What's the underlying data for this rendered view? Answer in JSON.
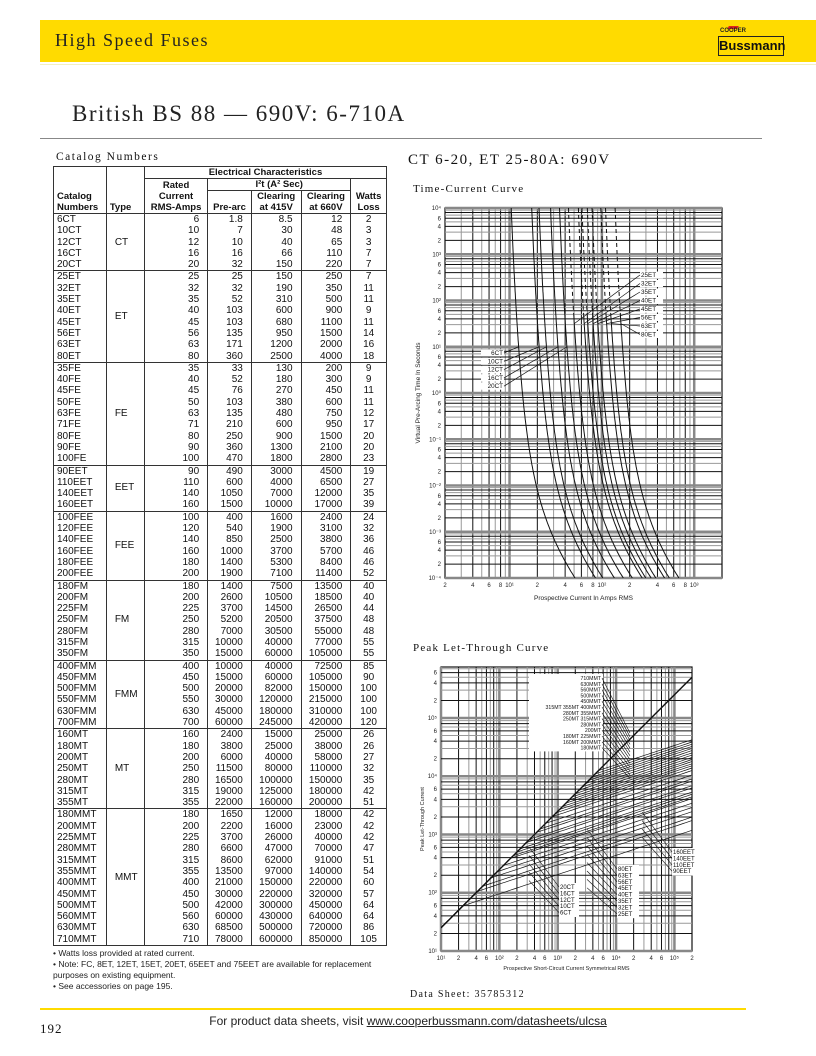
{
  "header": {
    "section": "High Speed Fuses",
    "brand_small": "COOPER",
    "brand": "Bussmann",
    "brand_color": "#ffdb00"
  },
  "title": "British BS 88 — 690V: 6-710A",
  "catalog": {
    "title": "Catalog Numbers",
    "headers": {
      "catalog": "Catalog",
      "numbers": "Numbers",
      "type": "Type",
      "electrical": "Electrical Characteristics",
      "rated1": "Rated",
      "rated2": "Current",
      "rated3": "RMS-Amps",
      "i2t": "I²t (A² Sec)",
      "prearc": "Pre-arc",
      "clear1": "Clearing",
      "at415": "at 415V",
      "at660": "at 660V",
      "watts": "Watts",
      "loss": "Loss"
    },
    "groups": [
      {
        "type": "CT",
        "rows": [
          [
            "6CT",
            "6",
            "1.8",
            "8.5",
            "12",
            "2"
          ],
          [
            "10CT",
            "10",
            "7",
            "30",
            "48",
            "3"
          ],
          [
            "12CT",
            "12",
            "10",
            "40",
            "65",
            "3"
          ],
          [
            "16CT",
            "16",
            "16",
            "66",
            "110",
            "7"
          ],
          [
            "20CT",
            "20",
            "32",
            "150",
            "220",
            "7"
          ]
        ]
      },
      {
        "type": "ET",
        "rows": [
          [
            "25ET",
            "25",
            "25",
            "150",
            "250",
            "7"
          ],
          [
            "32ET",
            "32",
            "32",
            "190",
            "350",
            "11"
          ],
          [
            "35ET",
            "35",
            "52",
            "310",
            "500",
            "11"
          ],
          [
            "40ET",
            "40",
            "103",
            "600",
            "900",
            "9"
          ],
          [
            "45ET",
            "45",
            "103",
            "680",
            "1100",
            "11"
          ],
          [
            "56ET",
            "56",
            "135",
            "950",
            "1500",
            "14"
          ],
          [
            "63ET",
            "63",
            "171",
            "1200",
            "2000",
            "16"
          ],
          [
            "80ET",
            "80",
            "360",
            "2500",
            "4000",
            "18"
          ]
        ]
      },
      {
        "type": "FE",
        "rows": [
          [
            "35FE",
            "35",
            "33",
            "130",
            "200",
            "9"
          ],
          [
            "40FE",
            "40",
            "52",
            "180",
            "300",
            "9"
          ],
          [
            "45FE",
            "45",
            "76",
            "270",
            "450",
            "11"
          ],
          [
            "50FE",
            "50",
            "103",
            "380",
            "600",
            "11"
          ],
          [
            "63FE",
            "63",
            "135",
            "480",
            "750",
            "12"
          ],
          [
            "71FE",
            "71",
            "210",
            "600",
            "950",
            "17"
          ],
          [
            "80FE",
            "80",
            "250",
            "900",
            "1500",
            "20"
          ],
          [
            "90FE",
            "90",
            "360",
            "1300",
            "2100",
            "20"
          ],
          [
            "100FE",
            "100",
            "470",
            "1800",
            "2800",
            "23"
          ]
        ]
      },
      {
        "type": "EET",
        "rows": [
          [
            "90EET",
            "90",
            "490",
            "3000",
            "4500",
            "19"
          ],
          [
            "110EET",
            "110",
            "600",
            "4000",
            "6500",
            "27"
          ],
          [
            "140EET",
            "140",
            "1050",
            "7000",
            "12000",
            "35"
          ],
          [
            "160EET",
            "160",
            "1500",
            "10000",
            "17000",
            "39"
          ]
        ]
      },
      {
        "type": "FEE",
        "rows": [
          [
            "100FEE",
            "100",
            "400",
            "1600",
            "2400",
            "24"
          ],
          [
            "120FEE",
            "120",
            "540",
            "1900",
            "3100",
            "32"
          ],
          [
            "140FEE",
            "140",
            "850",
            "2500",
            "3800",
            "36"
          ],
          [
            "160FEE",
            "160",
            "1000",
            "3700",
            "5700",
            "46"
          ],
          [
            "180FEE",
            "180",
            "1400",
            "5300",
            "8400",
            "46"
          ],
          [
            "200FEE",
            "200",
            "1900",
            "7100",
            "11400",
            "52"
          ]
        ]
      },
      {
        "type": "FM",
        "rows": [
          [
            "180FM",
            "180",
            "1400",
            "7500",
            "13500",
            "40"
          ],
          [
            "200FM",
            "200",
            "2600",
            "10500",
            "18500",
            "40"
          ],
          [
            "225FM",
            "225",
            "3700",
            "14500",
            "26500",
            "44"
          ],
          [
            "250FM",
            "250",
            "5200",
            "20500",
            "37500",
            "48"
          ],
          [
            "280FM",
            "280",
            "7000",
            "30500",
            "55000",
            "48"
          ],
          [
            "315FM",
            "315",
            "10000",
            "40000",
            "77000",
            "55"
          ],
          [
            "350FM",
            "350",
            "15000",
            "60000",
            "105000",
            "55"
          ]
        ]
      },
      {
        "type": "FMM",
        "rows": [
          [
            "400FMM",
            "400",
            "10000",
            "40000",
            "72500",
            "85"
          ],
          [
            "450FMM",
            "450",
            "15000",
            "60000",
            "105000",
            "90"
          ],
          [
            "500FMM",
            "500",
            "20000",
            "82000",
            "150000",
            "100"
          ],
          [
            "550FMM",
            "550",
            "30000",
            "120000",
            "215000",
            "100"
          ],
          [
            "630FMM",
            "630",
            "45000",
            "180000",
            "310000",
            "100"
          ],
          [
            "700FMM",
            "700",
            "60000",
            "245000",
            "420000",
            "120"
          ]
        ]
      },
      {
        "type": "MT",
        "rows": [
          [
            "160MT",
            "160",
            "2400",
            "15000",
            "25000",
            "26"
          ],
          [
            "180MT",
            "180",
            "3800",
            "25000",
            "38000",
            "26"
          ],
          [
            "200MT",
            "200",
            "6000",
            "40000",
            "58000",
            "27"
          ],
          [
            "250MT",
            "250",
            "11500",
            "80000",
            "110000",
            "32"
          ],
          [
            "280MT",
            "280",
            "16500",
            "100000",
            "150000",
            "35"
          ],
          [
            "315MT",
            "315",
            "19000",
            "125000",
            "180000",
            "42"
          ],
          [
            "355MT",
            "355",
            "22000",
            "160000",
            "200000",
            "51"
          ]
        ]
      },
      {
        "type": "MMT",
        "rows": [
          [
            "180MMT",
            "180",
            "1650",
            "12000",
            "18000",
            "42"
          ],
          [
            "200MMT",
            "200",
            "2200",
            "16000",
            "23000",
            "42"
          ],
          [
            "225MMT",
            "225",
            "3700",
            "26000",
            "40000",
            "42"
          ],
          [
            "280MMT",
            "280",
            "6600",
            "47000",
            "70000",
            "47"
          ],
          [
            "315MMT",
            "315",
            "8600",
            "62000",
            "91000",
            "51"
          ],
          [
            "355MMT",
            "355",
            "13500",
            "97000",
            "140000",
            "54"
          ],
          [
            "400MMT",
            "400",
            "21000",
            "150000",
            "220000",
            "60"
          ],
          [
            "450MMT",
            "450",
            "30000",
            "220000",
            "320000",
            "57"
          ],
          [
            "500MMT",
            "500",
            "42000",
            "300000",
            "450000",
            "64"
          ],
          [
            "560MMT",
            "560",
            "60000",
            "430000",
            "640000",
            "64"
          ],
          [
            "630MMT",
            "630",
            "68500",
            "500000",
            "720000",
            "86"
          ],
          [
            "710MMT",
            "710",
            "78000",
            "600000",
            "850000",
            "105"
          ]
        ]
      }
    ],
    "notes": [
      "• Watts loss provided at rated current.",
      "• Note: FC, 8ET, 12ET, 15ET, 20ET, 65EET and 75EET are available for replacement purposes on existing equipment.",
      "• See accessories on page 195."
    ]
  },
  "charts_heading": "CT 6-20, ET 25-80A: 690V",
  "chart_data": [
    {
      "type": "line",
      "title": "Time-Current Curve",
      "xlabel": "Prospective Current In Amps RMS",
      "ylabel": "Virtual Pre-Arcing Time In Seconds",
      "xscale": "log",
      "yscale": "log",
      "xlim": [
        2,
        2000
      ],
      "ylim": [
        0.0001,
        10000
      ],
      "grid": true,
      "x_ticks": [
        {
          "v": 2,
          "t": "2"
        },
        {
          "v": 4,
          "t": "4"
        },
        {
          "v": 6,
          "t": "6"
        },
        {
          "v": 8,
          "t": "8"
        },
        {
          "v": 10,
          "t": "10¹"
        },
        {
          "v": 20,
          "t": "2"
        },
        {
          "v": 40,
          "t": "4"
        },
        {
          "v": 60,
          "t": "6"
        },
        {
          "v": 80,
          "t": "8"
        },
        {
          "v": 100,
          "t": "10²"
        },
        {
          "v": 200,
          "t": "2"
        },
        {
          "v": 400,
          "t": "4"
        },
        {
          "v": 600,
          "t": "6"
        },
        {
          "v": 800,
          "t": "8"
        },
        {
          "v": 1000,
          "t": "10³"
        }
      ],
      "y_ticks": [
        {
          "v": 10000,
          "t": "10⁴"
        },
        {
          "v": 6000,
          "t": "6"
        },
        {
          "v": 4000,
          "t": "4"
        },
        {
          "v": 2000,
          "t": "2"
        },
        {
          "v": 1000,
          "t": "10³"
        },
        {
          "v": 600,
          "t": "6"
        },
        {
          "v": 400,
          "t": "4"
        },
        {
          "v": 200,
          "t": "2"
        },
        {
          "v": 100,
          "t": "10²"
        },
        {
          "v": 60,
          "t": "6"
        },
        {
          "v": 40,
          "t": "4"
        },
        {
          "v": 20,
          "t": "2"
        },
        {
          "v": 10,
          "t": "10¹"
        },
        {
          "v": 6,
          "t": "6"
        },
        {
          "v": 4,
          "t": "4"
        },
        {
          "v": 2,
          "t": "2"
        },
        {
          "v": 1,
          "t": "10⁰"
        },
        {
          "v": 0.6,
          "t": "6"
        },
        {
          "v": 0.4,
          "t": "4"
        },
        {
          "v": 0.2,
          "t": "2"
        },
        {
          "v": 0.1,
          "t": "10⁻¹"
        },
        {
          "v": 0.06,
          "t": "6"
        },
        {
          "v": 0.04,
          "t": "4"
        },
        {
          "v": 0.02,
          "t": "2"
        },
        {
          "v": 0.01,
          "t": "10⁻²"
        },
        {
          "v": 0.006,
          "t": "6"
        },
        {
          "v": 0.004,
          "t": "4"
        },
        {
          "v": 0.002,
          "t": "2"
        },
        {
          "v": 0.001,
          "t": "10⁻³"
        },
        {
          "v": 0.0006,
          "t": "6"
        },
        {
          "v": 0.0004,
          "t": "4"
        },
        {
          "v": 0.0002,
          "t": "2"
        },
        {
          "v": 0.0001,
          "t": "10⁻⁴"
        }
      ],
      "series": [
        {
          "name": "6CT",
          "rating": 6
        },
        {
          "name": "10CT",
          "rating": 10
        },
        {
          "name": "12CT",
          "rating": 12
        },
        {
          "name": "16CT",
          "rating": 16
        },
        {
          "name": "20CT",
          "rating": 20
        },
        {
          "name": "25ET",
          "rating": 25
        },
        {
          "name": "32ET",
          "rating": 32
        },
        {
          "name": "35ET",
          "rating": 35
        },
        {
          "name": "40ET",
          "rating": 40
        },
        {
          "name": "45ET",
          "rating": 45
        },
        {
          "name": "56ET",
          "rating": 56
        },
        {
          "name": "63ET",
          "rating": 63
        },
        {
          "name": "80ET",
          "rating": 80
        }
      ]
    },
    {
      "type": "line",
      "title": "Peak Let-Through Curve",
      "xlabel": "Prospective Short-Circuit Current Symmetrical RMS",
      "ylabel": "Peak Let-Through Current",
      "xscale": "log",
      "yscale": "log",
      "xlim": [
        10,
        200000
      ],
      "ylim": [
        10,
        750000
      ],
      "grid": true,
      "x_ticks": [
        {
          "v": 10,
          "t": "10¹"
        },
        {
          "v": 20,
          "t": "2"
        },
        {
          "v": 40,
          "t": "4"
        },
        {
          "v": 60,
          "t": "6"
        },
        {
          "v": 100,
          "t": "10²"
        },
        {
          "v": 200,
          "t": "2"
        },
        {
          "v": 400,
          "t": "4"
        },
        {
          "v": 600,
          "t": "6"
        },
        {
          "v": 1000,
          "t": "10³"
        },
        {
          "v": 2000,
          "t": "2"
        },
        {
          "v": 4000,
          "t": "4"
        },
        {
          "v": 6000,
          "t": "6"
        },
        {
          "v": 10000,
          "t": "10⁴"
        },
        {
          "v": 20000,
          "t": "2"
        },
        {
          "v": 40000,
          "t": "4"
        },
        {
          "v": 60000,
          "t": "6"
        },
        {
          "v": 100000,
          "t": "10⁵"
        },
        {
          "v": 200000,
          "t": "2"
        }
      ],
      "y_ticks": [
        {
          "v": 10,
          "t": "10¹"
        },
        {
          "v": 20,
          "t": "2"
        },
        {
          "v": 40,
          "t": "4"
        },
        {
          "v": 60,
          "t": "6"
        },
        {
          "v": 100,
          "t": "10²"
        },
        {
          "v": 200,
          "t": "2"
        },
        {
          "v": 400,
          "t": "4"
        },
        {
          "v": 600,
          "t": "6"
        },
        {
          "v": 1000,
          "t": "10³"
        },
        {
          "v": 2000,
          "t": "2"
        },
        {
          "v": 4000,
          "t": "4"
        },
        {
          "v": 6000,
          "t": "6"
        },
        {
          "v": 10000,
          "t": "10⁴"
        },
        {
          "v": 20000,
          "t": "2"
        },
        {
          "v": 40000,
          "t": "4"
        },
        {
          "v": 60000,
          "t": "6"
        },
        {
          "v": 100000,
          "t": "10⁵"
        },
        {
          "v": 200000,
          "t": "2"
        },
        {
          "v": 400000,
          "t": "4"
        },
        {
          "v": 600000,
          "t": "6"
        }
      ],
      "label_groups": [
        {
          "anchor": "mmt",
          "labels": [
            "710MMT",
            "630MMT",
            "560MMT",
            "500MMT",
            "450MMT",
            "315MT  355MT  400MMT",
            "280MT  355MMT",
            "250MT  315MMT",
            "280MMT",
            "200MT",
            "180MT  225MMT",
            "160MT  200MMT",
            "180MMT"
          ]
        },
        {
          "anchor": "eet",
          "labels": [
            "160EET",
            "140EET",
            "110EET",
            "90EET"
          ]
        },
        {
          "anchor": "et",
          "labels": [
            "80ET",
            "63ET",
            "56ET",
            "45ET",
            "40ET",
            "35ET",
            "32ET",
            "25ET"
          ]
        },
        {
          "anchor": "ct",
          "labels": [
            "20CT",
            "16CT",
            "12CT",
            "10CT",
            "6CT"
          ]
        }
      ],
      "series_ratings": [
        6,
        10,
        12,
        16,
        20,
        25,
        32,
        35,
        40,
        45,
        56,
        63,
        80,
        90,
        110,
        140,
        160,
        180,
        200,
        225,
        250,
        280,
        315,
        355,
        400,
        450,
        500,
        560,
        630,
        710
      ]
    }
  ],
  "footer": {
    "datasheet": "Data Sheet: 35785312",
    "text": "For product data sheets, visit ",
    "link": "www.cooperbussmann.com/datasheets/ulcsa",
    "page": "192"
  }
}
